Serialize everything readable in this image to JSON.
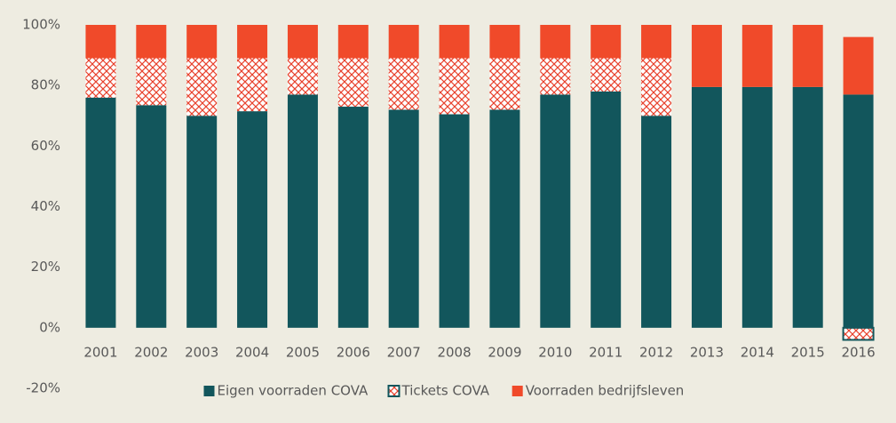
{
  "chart_data": {
    "type": "bar",
    "stacked": true,
    "categories": [
      "2001",
      "2002",
      "2003",
      "2004",
      "2005",
      "2006",
      "2007",
      "2008",
      "2009",
      "2010",
      "2011",
      "2012",
      "2013",
      "2014",
      "2015",
      "2016"
    ],
    "series": [
      {
        "name": "Eigen voorraden COVA",
        "color": "#12565c",
        "pattern": "solid",
        "values": [
          76,
          73.5,
          70,
          71.5,
          77,
          73,
          72,
          70.5,
          72,
          77,
          78,
          70,
          79.5,
          79.5,
          79.5,
          77
        ]
      },
      {
        "name": "Tickets COVA",
        "color": "#e8412c",
        "pattern": "crosshatch",
        "values": [
          13,
          15.5,
          19,
          17.5,
          12,
          16,
          17,
          18.5,
          17,
          12,
          11,
          19,
          0,
          0,
          0,
          -4
        ]
      },
      {
        "name": "Voorraden bedrijfsleven",
        "color": "#f04a2a",
        "pattern": "solid",
        "values": [
          11,
          11,
          11,
          11,
          11,
          11,
          11,
          11,
          11,
          11,
          11,
          11,
          20.5,
          20.5,
          20.5,
          19
        ]
      }
    ],
    "ylim": [
      -20,
      100
    ],
    "yticks": [
      {
        "value": -20,
        "label": "-20%"
      },
      {
        "value": 0,
        "label": "0%"
      },
      {
        "value": 20,
        "label": "20%"
      },
      {
        "value": 40,
        "label": "40%"
      },
      {
        "value": 60,
        "label": "60%"
      },
      {
        "value": 80,
        "label": "80%"
      },
      {
        "value": 100,
        "label": "100%"
      }
    ],
    "grid": false,
    "legend": "bottom"
  }
}
